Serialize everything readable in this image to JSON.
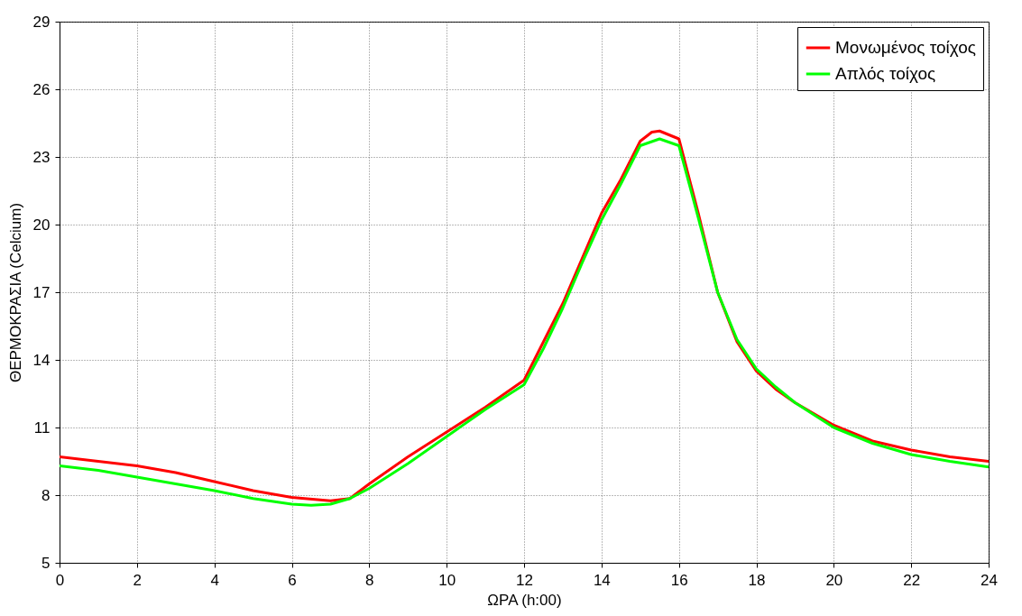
{
  "chart_data": {
    "type": "line",
    "xlabel": "ΩΡΑ (h:00)",
    "ylabel": "ΘΕΡΜΟΚΡΑΣΙΑ (Celcium)",
    "xlim": [
      0,
      24
    ],
    "xticks": [
      0,
      2,
      4,
      6,
      8,
      10,
      12,
      14,
      16,
      18,
      20,
      22,
      24
    ],
    "ylim": [
      5,
      29
    ],
    "yticks": [
      5,
      8,
      11,
      14,
      17,
      20,
      23,
      26,
      29
    ],
    "grid": true,
    "legend": "top right",
    "line_style": "solid",
    "marker": "none",
    "series": [
      {
        "name": "Μονωμένος τοίχος",
        "color": "#ff0000",
        "x": [
          0,
          1,
          2,
          3,
          4,
          5,
          6,
          7,
          7.5,
          8,
          9,
          10,
          11,
          12,
          12.5,
          13,
          13.5,
          14,
          14.5,
          15,
          15.3,
          15.5,
          16,
          16.5,
          17,
          17.5,
          18,
          18.5,
          19,
          20,
          21,
          22,
          23,
          24
        ],
        "values": [
          9.7,
          9.5,
          9.3,
          9.0,
          8.6,
          8.2,
          7.9,
          7.75,
          7.85,
          8.5,
          9.7,
          10.8,
          11.9,
          13.1,
          14.8,
          16.5,
          18.5,
          20.5,
          22.0,
          23.7,
          24.1,
          24.15,
          23.8,
          20.5,
          17.0,
          14.8,
          13.5,
          12.7,
          12.1,
          11.1,
          10.4,
          10.0,
          9.7,
          9.5
        ]
      },
      {
        "name": "Απλός τοίχος",
        "color": "#00ff00",
        "x": [
          0,
          1,
          2,
          3,
          4,
          5,
          6,
          6.5,
          7,
          7.5,
          8,
          9,
          10,
          11,
          12,
          12.5,
          13,
          13.5,
          14,
          14.5,
          15,
          15.5,
          16,
          16.5,
          17,
          17.5,
          18,
          18.5,
          19,
          20,
          21,
          22,
          23,
          24
        ],
        "values": [
          9.3,
          9.1,
          8.8,
          8.5,
          8.2,
          7.85,
          7.6,
          7.55,
          7.6,
          7.85,
          8.3,
          9.4,
          10.6,
          11.8,
          12.9,
          14.5,
          16.3,
          18.3,
          20.2,
          21.8,
          23.5,
          23.8,
          23.5,
          20.3,
          17.0,
          14.9,
          13.6,
          12.8,
          12.1,
          11.0,
          10.3,
          9.8,
          9.5,
          9.25
        ]
      }
    ]
  }
}
